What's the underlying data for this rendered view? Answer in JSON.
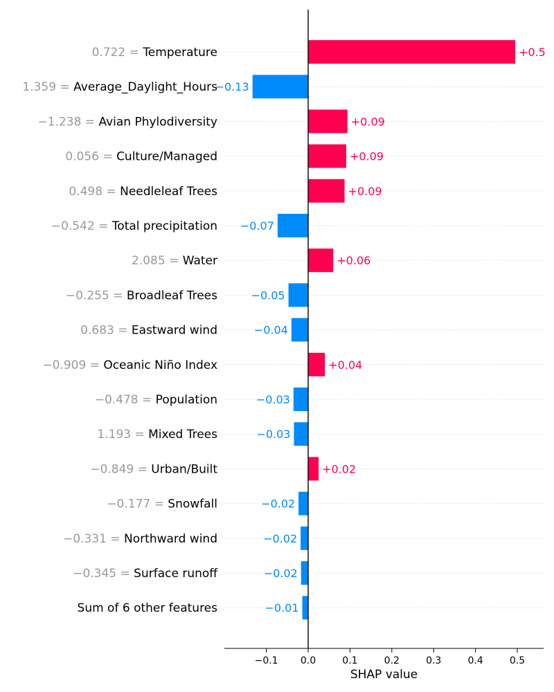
{
  "chart_data": {
    "type": "bar",
    "orientation": "horizontal",
    "xlabel": "SHAP value",
    "xlim": [
      -0.2,
      0.56
    ],
    "x_ticks": [
      -0.1,
      0.0,
      0.1,
      0.2,
      0.3,
      0.4,
      0.5
    ],
    "x_tick_labels": [
      "−0.1",
      "0.0",
      "0.1",
      "0.2",
      "0.3",
      "0.4",
      "0.5"
    ],
    "grid": "horizontal dotted",
    "colors": {
      "positive": "#ff0051",
      "negative": "#008bfb",
      "feature_value": "#999999"
    },
    "features": [
      {
        "value_text": "0.722 = ",
        "name": "Temperature",
        "shap": 0.495,
        "label": "+0.5"
      },
      {
        "value_text": "1.359 = ",
        "name": "Average_Daylight_Hours",
        "shap": -0.133,
        "label": "−0.13"
      },
      {
        "value_text": "−1.238 = ",
        "name": "Avian Phylodiversity",
        "shap": 0.094,
        "label": "+0.09"
      },
      {
        "value_text": "0.056 = ",
        "name": "Culture/Managed",
        "shap": 0.091,
        "label": "+0.09"
      },
      {
        "value_text": "0.498 = ",
        "name": "Needleleaf Trees",
        "shap": 0.087,
        "label": "+0.09"
      },
      {
        "value_text": "−0.542 = ",
        "name": "Total precipitation",
        "shap": -0.073,
        "label": "−0.07"
      },
      {
        "value_text": "2.085 = ",
        "name": "Water",
        "shap": 0.06,
        "label": "+0.06"
      },
      {
        "value_text": "−0.255 = ",
        "name": "Broadleaf Trees",
        "shap": -0.047,
        "label": "−0.05"
      },
      {
        "value_text": "0.683 = ",
        "name": "Eastward wind",
        "shap": -0.04,
        "label": "−0.04"
      },
      {
        "value_text": "−0.909 = ",
        "name": "Oceanic Niño Index",
        "shap": 0.04,
        "label": "+0.04"
      },
      {
        "value_text": "−0.478 = ",
        "name": "Population",
        "shap": -0.035,
        "label": "−0.03"
      },
      {
        "value_text": "1.193 = ",
        "name": "Mixed Trees",
        "shap": -0.034,
        "label": "−0.03"
      },
      {
        "value_text": "−0.849 = ",
        "name": "Urban/Built",
        "shap": 0.025,
        "label": "+0.02"
      },
      {
        "value_text": "−0.177 = ",
        "name": "Snowfall",
        "shap": -0.023,
        "label": "−0.02"
      },
      {
        "value_text": "−0.331 = ",
        "name": "Northward wind",
        "shap": -0.018,
        "label": "−0.02"
      },
      {
        "value_text": "−0.345 = ",
        "name": "Surface runoff",
        "shap": -0.017,
        "label": "−0.02"
      },
      {
        "value_text": "",
        "name": "Sum of 6 other features",
        "shap": -0.014,
        "label": "−0.01"
      }
    ]
  }
}
